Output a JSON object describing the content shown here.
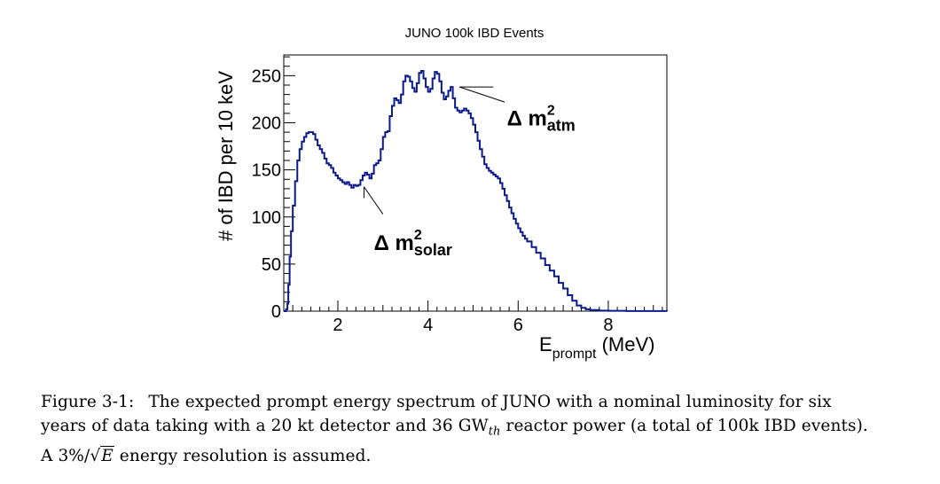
{
  "chart_data": {
    "type": "line",
    "title": "JUNO 100k IBD Events",
    "xlabel_main": "E",
    "xlabel_sub": "prompt",
    "xlabel_unit": " (MeV)",
    "ylabel": "# of IBD per 10 keV",
    "xlim": [
      0.8,
      9.3
    ],
    "ylim": [
      0,
      272
    ],
    "xticks": [
      2,
      4,
      6,
      8
    ],
    "yticks": [
      0,
      50,
      100,
      150,
      200,
      250
    ],
    "grid": false,
    "series": [
      {
        "color": "#0b1a8a",
        "points": [
          [
            0.8,
            0
          ],
          [
            0.85,
            2
          ],
          [
            0.88,
            8
          ],
          [
            0.9,
            28
          ],
          [
            0.93,
            58
          ],
          [
            0.96,
            85
          ],
          [
            1.0,
            112
          ],
          [
            1.05,
            138
          ],
          [
            1.1,
            160
          ],
          [
            1.15,
            172
          ],
          [
            1.2,
            180
          ],
          [
            1.25,
            185
          ],
          [
            1.3,
            189
          ],
          [
            1.35,
            190
          ],
          [
            1.4,
            190
          ],
          [
            1.45,
            188
          ],
          [
            1.5,
            182
          ],
          [
            1.55,
            176
          ],
          [
            1.6,
            172
          ],
          [
            1.65,
            168
          ],
          [
            1.7,
            162
          ],
          [
            1.75,
            157
          ],
          [
            1.8,
            155
          ],
          [
            1.85,
            152
          ],
          [
            1.9,
            147
          ],
          [
            1.95,
            144
          ],
          [
            2.0,
            141
          ],
          [
            2.05,
            139
          ],
          [
            2.1,
            137
          ],
          [
            2.15,
            135
          ],
          [
            2.2,
            137
          ],
          [
            2.25,
            134
          ],
          [
            2.3,
            131
          ],
          [
            2.35,
            134
          ],
          [
            2.4,
            133
          ],
          [
            2.45,
            134
          ],
          [
            2.5,
            139
          ],
          [
            2.55,
            144
          ],
          [
            2.6,
            147
          ],
          [
            2.65,
            145
          ],
          [
            2.7,
            141
          ],
          [
            2.75,
            146
          ],
          [
            2.8,
            155
          ],
          [
            2.85,
            157
          ],
          [
            2.9,
            160
          ],
          [
            2.95,
            172
          ],
          [
            3.0,
            185
          ],
          [
            3.05,
            190
          ],
          [
            3.1,
            191
          ],
          [
            3.15,
            207
          ],
          [
            3.2,
            218
          ],
          [
            3.25,
            226
          ],
          [
            3.3,
            224
          ],
          [
            3.35,
            221
          ],
          [
            3.4,
            230
          ],
          [
            3.45,
            244
          ],
          [
            3.5,
            250
          ],
          [
            3.55,
            249
          ],
          [
            3.6,
            244
          ],
          [
            3.65,
            237
          ],
          [
            3.7,
            233
          ],
          [
            3.75,
            242
          ],
          [
            3.8,
            253
          ],
          [
            3.85,
            255
          ],
          [
            3.9,
            247
          ],
          [
            3.95,
            238
          ],
          [
            4.0,
            233
          ],
          [
            4.05,
            236
          ],
          [
            4.1,
            247
          ],
          [
            4.15,
            254
          ],
          [
            4.2,
            252
          ],
          [
            4.25,
            244
          ],
          [
            4.3,
            232
          ],
          [
            4.35,
            225
          ],
          [
            4.4,
            228
          ],
          [
            4.45,
            234
          ],
          [
            4.5,
            238
          ],
          [
            4.55,
            226
          ],
          [
            4.6,
            216
          ],
          [
            4.65,
            213
          ],
          [
            4.7,
            211
          ],
          [
            4.75,
            213
          ],
          [
            4.8,
            215
          ],
          [
            4.85,
            213
          ],
          [
            4.9,
            210
          ],
          [
            4.95,
            205
          ],
          [
            5.0,
            198
          ],
          [
            5.05,
            190
          ],
          [
            5.1,
            181
          ],
          [
            5.15,
            172
          ],
          [
            5.2,
            164
          ],
          [
            5.25,
            156
          ],
          [
            5.3,
            152
          ],
          [
            5.35,
            149
          ],
          [
            5.4,
            147
          ],
          [
            5.45,
            145
          ],
          [
            5.5,
            143
          ],
          [
            5.55,
            141
          ],
          [
            5.6,
            136
          ],
          [
            5.65,
            130
          ],
          [
            5.7,
            123
          ],
          [
            5.75,
            117
          ],
          [
            5.8,
            110
          ],
          [
            5.85,
            104
          ],
          [
            5.9,
            98
          ],
          [
            5.95,
            93
          ],
          [
            6.0,
            88
          ],
          [
            6.05,
            84
          ],
          [
            6.1,
            80
          ],
          [
            6.15,
            77
          ],
          [
            6.2,
            74
          ],
          [
            6.3,
            68
          ],
          [
            6.4,
            62
          ],
          [
            6.5,
            56
          ],
          [
            6.6,
            49
          ],
          [
            6.7,
            43
          ],
          [
            6.8,
            37
          ],
          [
            6.9,
            30
          ],
          [
            7.0,
            24
          ],
          [
            7.1,
            17
          ],
          [
            7.2,
            11
          ],
          [
            7.3,
            6
          ],
          [
            7.4,
            3.5
          ],
          [
            7.5,
            2
          ],
          [
            7.6,
            1.2
          ],
          [
            7.8,
            0.6
          ],
          [
            8.0,
            0.3
          ],
          [
            8.4,
            0.1
          ],
          [
            9.3,
            0
          ]
        ]
      }
    ],
    "annotations": [
      {
        "label_main": "Δ m",
        "label_sup": "2",
        "label_sub": "atm",
        "arrow_from": [
          5.7,
          222
        ],
        "arrow_to": [
          4.7,
          238
        ],
        "label_pos": [
          5.75,
          197
        ],
        "tail_to": [
          5.45,
          238
        ]
      },
      {
        "label_main": "Δ m",
        "label_sup": "2",
        "label_sub": "solar",
        "arrow_from": [
          3.0,
          103
        ],
        "arrow_to": [
          2.58,
          132
        ],
        "label_pos": [
          2.8,
          65
        ],
        "tail_to": [
          2.58,
          120
        ]
      }
    ]
  },
  "caption": {
    "label": "Figure 3-1:",
    "line1": "The expected prompt energy spectrum of JUNO with a nominal luminosity for six",
    "line2_a": "years of data taking with a 20 kt detector and 36 GW",
    "line2_sub": "th",
    "line2_b": " reactor power (a total of 100k IBD events).",
    "line3_a": "A 3%/",
    "line3_sqrt_sym": "√",
    "line3_sqrt_arg": "E",
    "line3_b": " energy resolution is assumed."
  }
}
